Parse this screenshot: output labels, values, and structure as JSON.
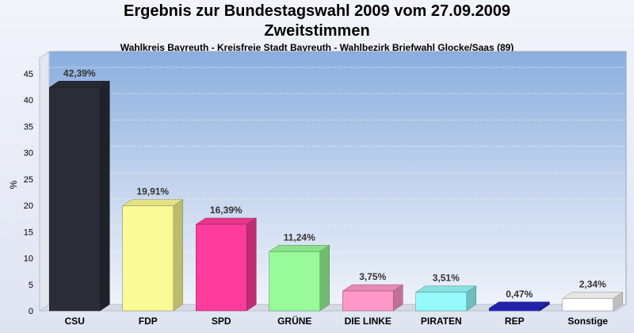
{
  "chart_data": {
    "type": "bar",
    "title": "Ergebnis zur Bundestagswahl 2009 vom 27.09.2009",
    "title2": "Zweitstimmen",
    "subtitle": "Wahlkreis Bayreuth - Kreisfreie Stadt Bayreuth - Wahlbezirk Briefwahl Glocke/Saas (89)",
    "xlabel": "",
    "ylabel": "%",
    "ylim": [
      0,
      48
    ],
    "yticks": [
      0,
      5,
      10,
      15,
      20,
      25,
      30,
      35,
      40,
      45
    ],
    "categories": [
      "CSU",
      "FDP",
      "SPD",
      "GRÜNE",
      "DIE LINKE",
      "PIRATEN",
      "REP",
      "Sonstige"
    ],
    "values": [
      42.39,
      19.91,
      16.39,
      11.24,
      3.75,
      3.51,
      0.47,
      2.34
    ],
    "value_labels": [
      "42,39%",
      "19,91%",
      "16,39%",
      "11,24%",
      "3,75%",
      "3,51%",
      "0,47%",
      "2,34%"
    ],
    "colors": [
      "#2a2d38",
      "#fafa96",
      "#ff3c9c",
      "#98fa98",
      "#ff98c8",
      "#96fafa",
      "#2626c0",
      "#ffffff"
    ],
    "grid": true,
    "legend": "none"
  }
}
